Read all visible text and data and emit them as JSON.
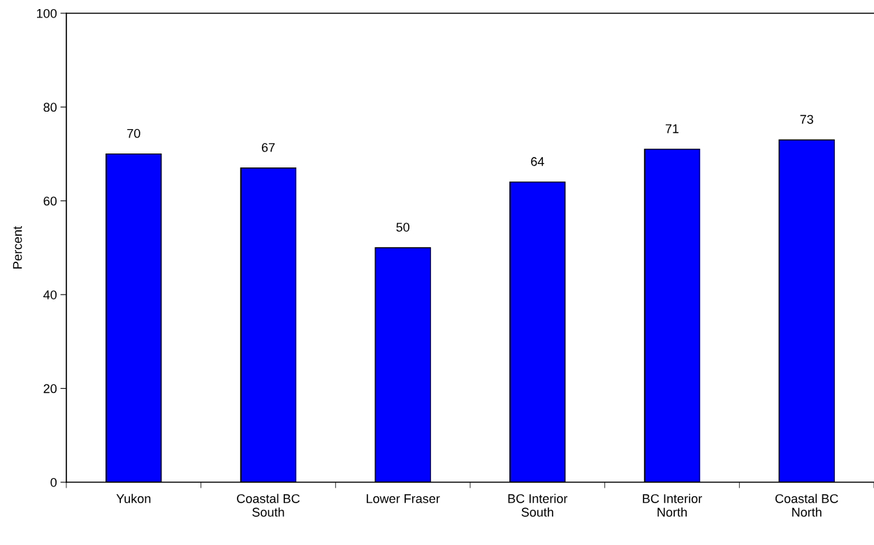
{
  "chart_data": {
    "type": "bar",
    "ylabel": "Percent",
    "categories": [
      "Yukon",
      "Coastal BC\nSouth",
      "Lower Fraser",
      "BC Interior\nSouth",
      "BC Interior\nNorth",
      "Coastal BC\nNorth"
    ],
    "values": [
      70,
      67,
      50,
      64,
      71,
      73
    ],
    "color": "#0000ff",
    "ylim": [
      0,
      100
    ],
    "yticks": [
      0,
      20,
      40,
      60,
      80,
      100
    ],
    "data_labels": true,
    "grid": false,
    "legend": false
  }
}
